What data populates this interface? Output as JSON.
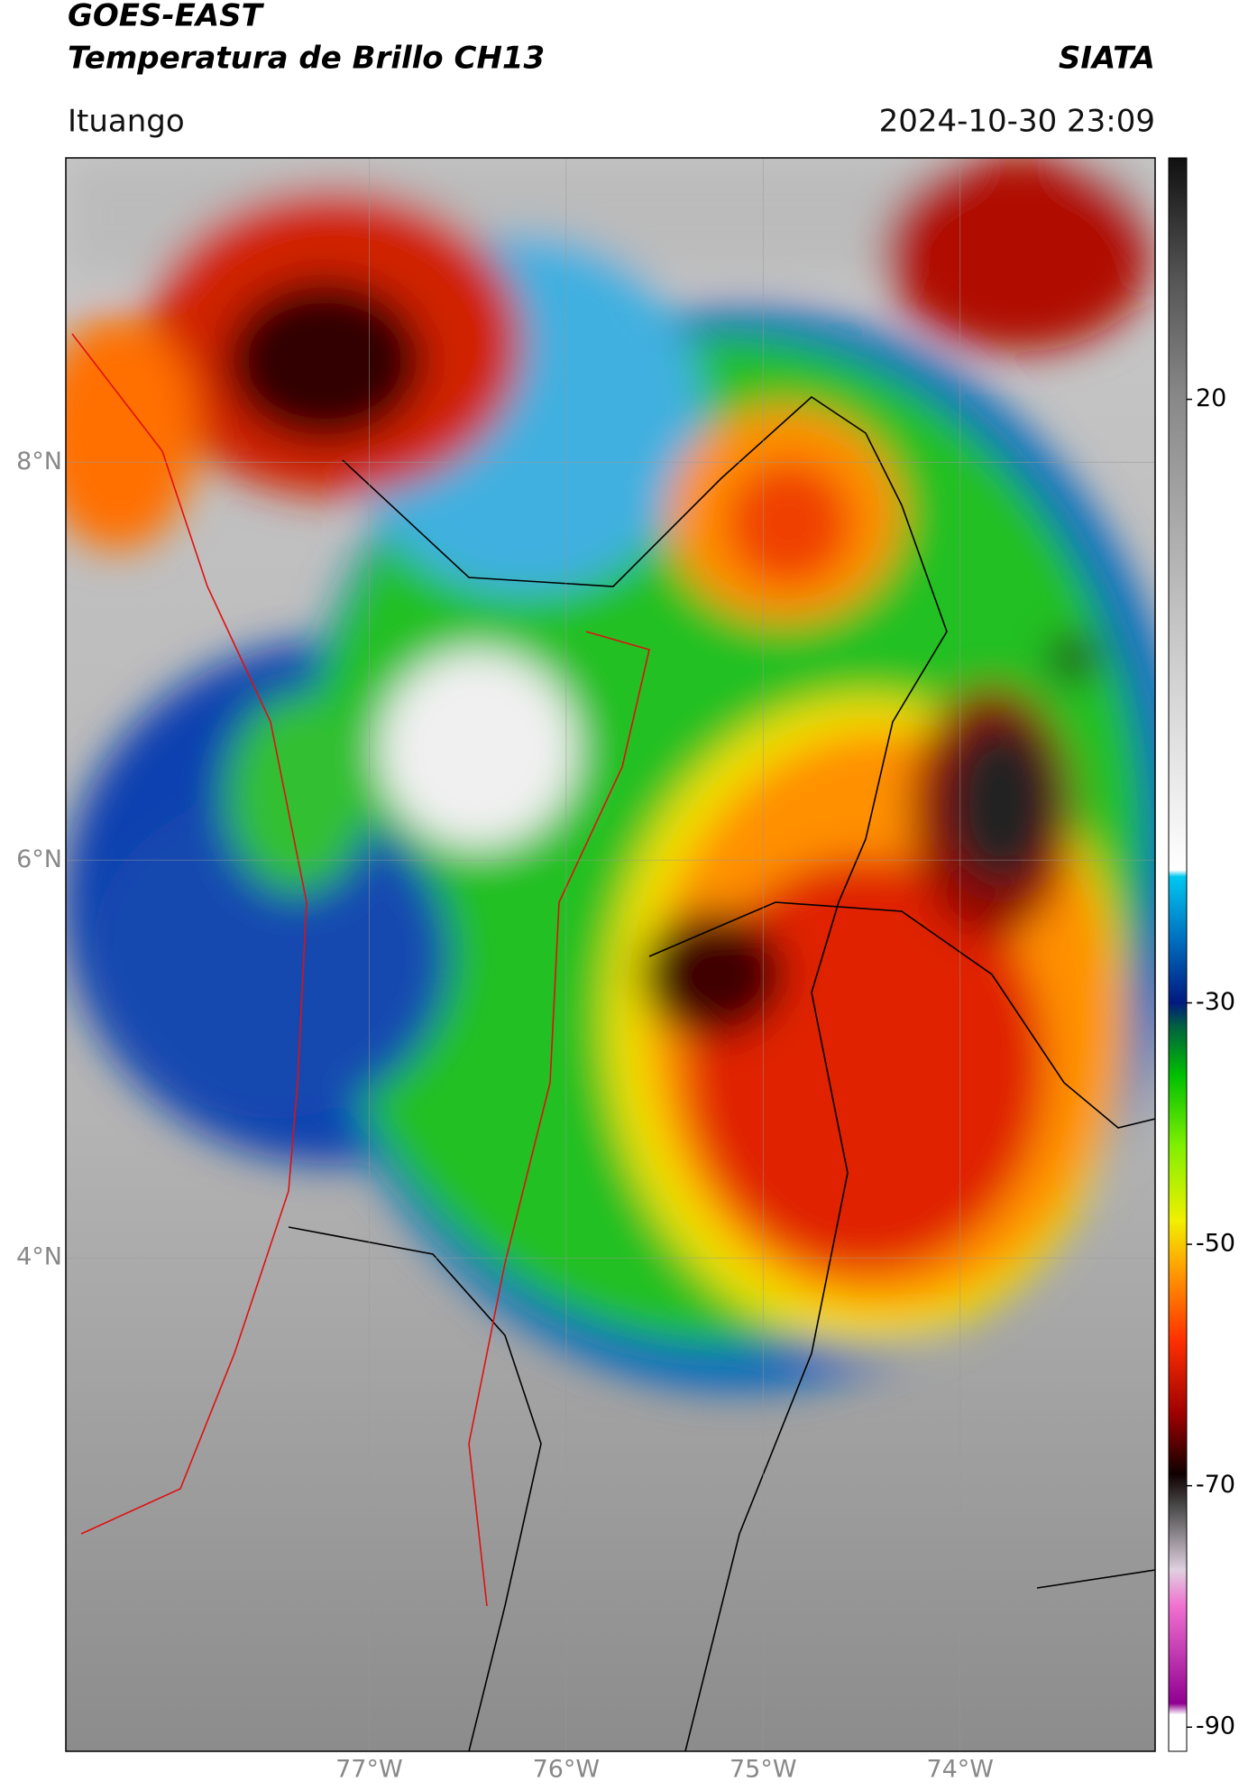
{
  "header": {
    "title": "GOES-EAST",
    "subtitle": "Temperatura de Brillo CH13",
    "source": "SIATA",
    "location": "Ituango",
    "datetime": "2024-10-30 23:09"
  },
  "map": {
    "latlim": [
      1.52,
      9.53
    ],
    "lonlim": [
      -78.54,
      -73.01
    ],
    "latticks": [
      {
        "value": 8,
        "label": "8°N"
      },
      {
        "value": 6,
        "label": "6°N"
      },
      {
        "value": 4,
        "label": "4°N"
      }
    ],
    "lonticks": [
      {
        "value": -77,
        "label": "77°W"
      },
      {
        "value": -76,
        "label": "76°W"
      },
      {
        "value": -75,
        "label": "75°W"
      },
      {
        "value": -74,
        "label": "74°W"
      }
    ],
    "grid": true
  },
  "colorbar": {
    "lim": [
      -92,
      40
    ],
    "ticks": [
      20,
      -30,
      -50,
      -70,
      -90
    ]
  }
}
